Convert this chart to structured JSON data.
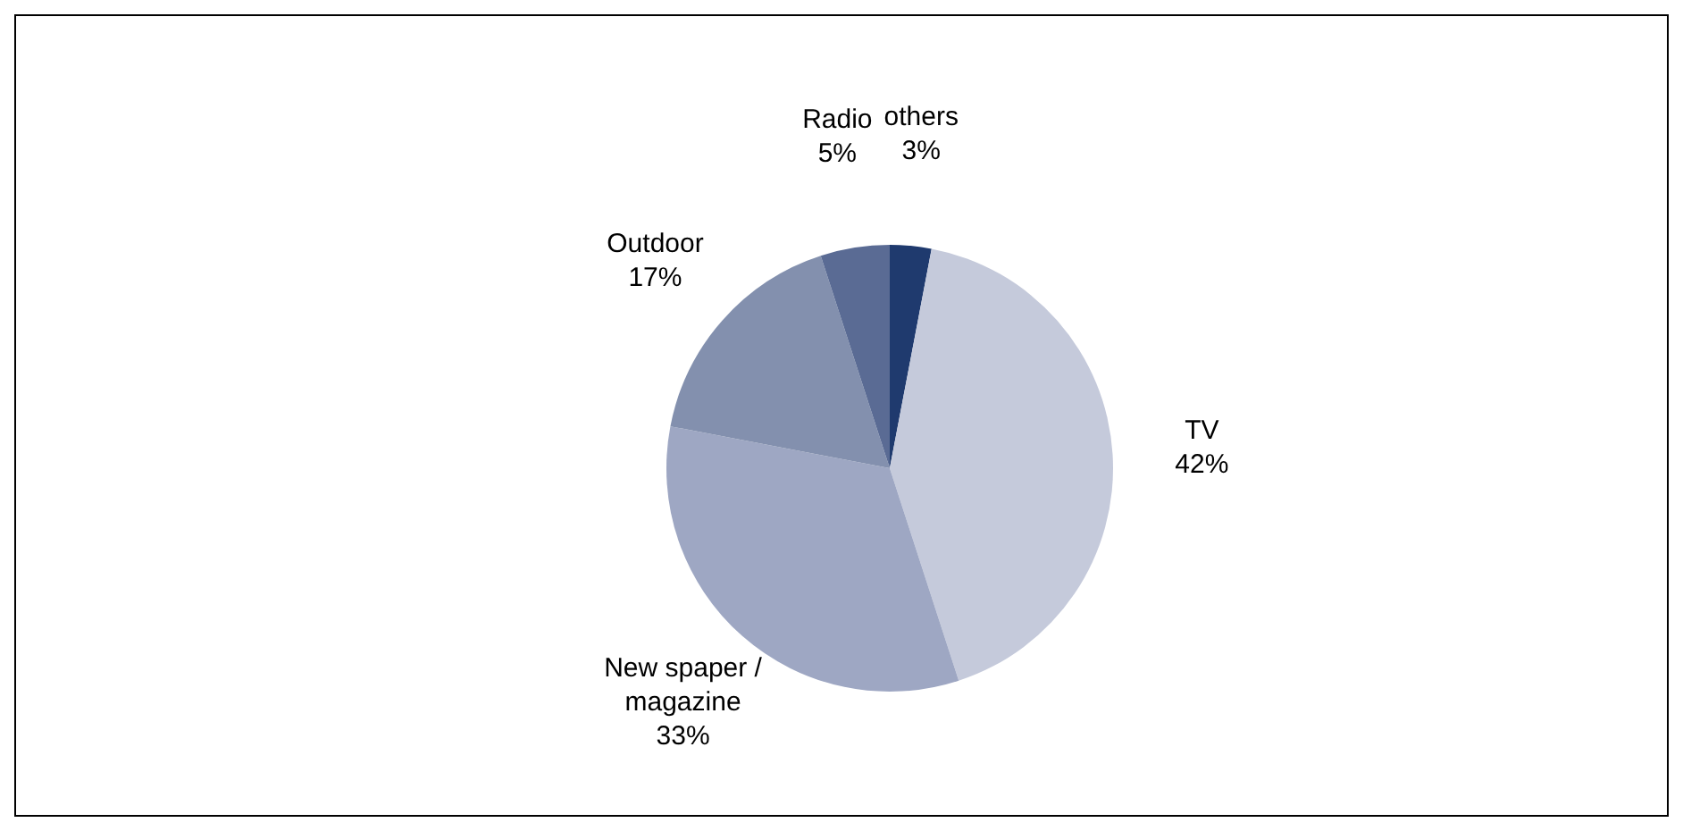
{
  "chart_data": {
    "type": "pie",
    "categories": [
      "others",
      "TV",
      "New spaper / magazine",
      "Outdoor",
      "Radio"
    ],
    "values": [
      3,
      42,
      33,
      17,
      5
    ],
    "value_labels": [
      "3%",
      "42%",
      "33%",
      "17%",
      "5%"
    ],
    "colors": [
      "#1f3a6e",
      "#c5cadb",
      "#9ea7c3",
      "#8390ae",
      "#5a6b94"
    ],
    "legend": false
  }
}
